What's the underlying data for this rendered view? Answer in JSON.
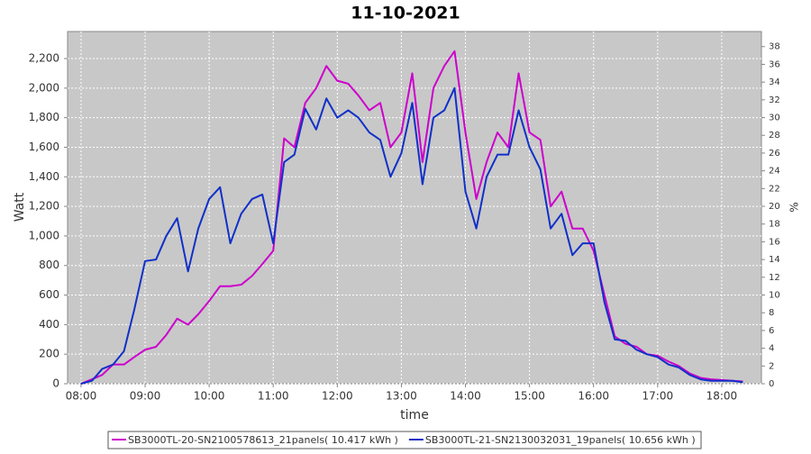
{
  "chart_data": {
    "type": "line",
    "title": "11-10-2021",
    "xlabel": "time",
    "ylabel": "Watt",
    "y2label": "%",
    "x": [
      8,
      8.17,
      8.33,
      8.5,
      8.67,
      8.83,
      9,
      9.17,
      9.33,
      9.5,
      9.67,
      9.83,
      10,
      10.17,
      10.33,
      10.5,
      10.67,
      10.83,
      11,
      11.17,
      11.33,
      11.5,
      11.67,
      11.83,
      12,
      12.17,
      12.33,
      12.5,
      12.67,
      12.83,
      13,
      13.17,
      13.33,
      13.5,
      13.67,
      13.83,
      14,
      14.17,
      14.33,
      14.5,
      14.67,
      14.83,
      15,
      15.17,
      15.33,
      15.5,
      15.67,
      15.83,
      16,
      16.17,
      16.33,
      16.5,
      16.67,
      16.83,
      17,
      17.17,
      17.33,
      17.5,
      17.67,
      17.83,
      18,
      18.17,
      18.33
    ],
    "series": [
      {
        "name": "SB3000TL-20-SN2100578613_21panels( 10.417 kWh )",
        "color": "#cc00cc",
        "values": [
          0,
          30,
          60,
          130,
          130,
          180,
          230,
          250,
          330,
          440,
          400,
          470,
          560,
          660,
          660,
          670,
          730,
          810,
          900,
          1660,
          1600,
          1900,
          2000,
          2150,
          2050,
          2030,
          1950,
          1850,
          1900,
          1600,
          1700,
          2100,
          1500,
          2000,
          2150,
          2250,
          1700,
          1250,
          1500,
          1700,
          1600,
          2100,
          1700,
          1650,
          1200,
          1300,
          1050,
          1050,
          900,
          600,
          320,
          270,
          250,
          200,
          190,
          150,
          120,
          70,
          40,
          30,
          25,
          20,
          15
        ]
      },
      {
        "name": "SB3000TL-21-SN2130032031_19panels( 10.656 kWh )",
        "color": "#1030c8",
        "values": [
          0,
          20,
          100,
          130,
          220,
          500,
          830,
          840,
          1000,
          1120,
          760,
          1050,
          1250,
          1330,
          950,
          1150,
          1250,
          1280,
          950,
          1500,
          1550,
          1860,
          1720,
          1930,
          1800,
          1850,
          1800,
          1700,
          1650,
          1400,
          1560,
          1900,
          1350,
          1800,
          1850,
          2000,
          1300,
          1050,
          1400,
          1550,
          1550,
          1850,
          1600,
          1450,
          1050,
          1150,
          870,
          950,
          950,
          550,
          300,
          290,
          230,
          200,
          180,
          130,
          110,
          60,
          30,
          20,
          20,
          20,
          10
        ]
      }
    ],
    "xlim": [
      7.79,
      18.62
    ],
    "xticks": [
      {
        "value": 8,
        "label": "08:00"
      },
      {
        "value": 9,
        "label": "09:00"
      },
      {
        "value": 10,
        "label": "10:00"
      },
      {
        "value": 11,
        "label": "11:00"
      },
      {
        "value": 12,
        "label": "12:00"
      },
      {
        "value": 13,
        "label": "13:00"
      },
      {
        "value": 14,
        "label": "14:00"
      },
      {
        "value": 15,
        "label": "15:00"
      },
      {
        "value": 16,
        "label": "16:00"
      },
      {
        "value": 17,
        "label": "17:00"
      },
      {
        "value": 18,
        "label": "18:00"
      }
    ],
    "ylim": [
      0,
      2383
    ],
    "yticks": [
      0,
      200,
      400,
      600,
      800,
      {
        "value": 1000,
        "label": "1,000"
      },
      {
        "value": 1200,
        "label": "1,200"
      },
      {
        "value": 1400,
        "label": "1,400"
      },
      {
        "value": 1600,
        "label": "1,600"
      },
      {
        "value": 1800,
        "label": "1,800"
      },
      {
        "value": 2000,
        "label": "2,000"
      },
      {
        "value": 2200,
        "label": "2,200"
      }
    ],
    "y2lim": [
      0,
      39.7
    ],
    "y2ticks": [
      0,
      2,
      4,
      6,
      8,
      10,
      12,
      14,
      16,
      18,
      20,
      22,
      24,
      26,
      28,
      30,
      32,
      34,
      36,
      38
    ],
    "grid": true,
    "legend": "bottom"
  }
}
